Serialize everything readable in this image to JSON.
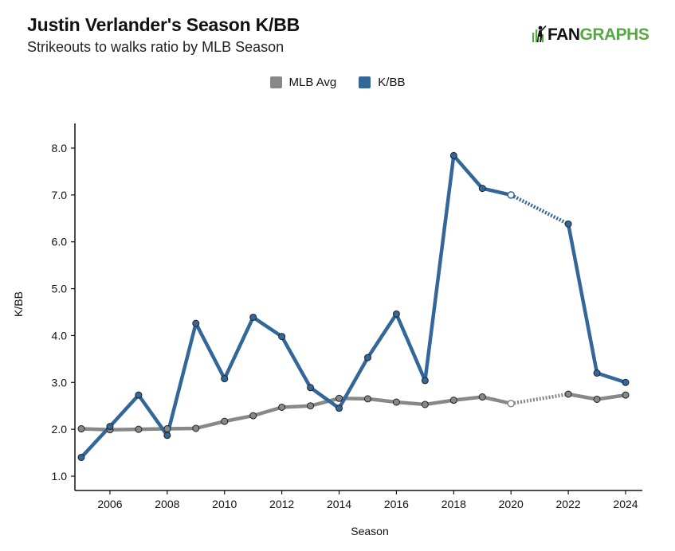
{
  "header": {
    "title": "Justin Verlander's Season K/BB",
    "subtitle": "Strikeouts to walks ratio by MLB Season"
  },
  "logo": {
    "text_fan": "FAN",
    "text_graphs": "GRAPHS",
    "icon": "fangraphs-batter-logo-icon",
    "colors": {
      "dark": "#111111",
      "green": "#56a842"
    }
  },
  "legend": [
    {
      "name": "MLB Avg",
      "color": "#888888"
    },
    {
      "name": "K/BB",
      "color": "#33679a"
    }
  ],
  "chart_data": {
    "type": "line",
    "xlabel": "Season",
    "ylabel": "K/BB",
    "xlim": [
      2005,
      2024
    ],
    "ylim": [
      1.0,
      8.0
    ],
    "x_ticks": [
      2006,
      2008,
      2010,
      2012,
      2014,
      2016,
      2018,
      2020,
      2022,
      2024
    ],
    "y_ticks": [
      1.0,
      2.0,
      3.0,
      4.0,
      5.0,
      6.0,
      7.0,
      8.0
    ],
    "grid": false,
    "legend_position": "top-center",
    "series": [
      {
        "name": "MLB Avg",
        "color": "#888888",
        "points": [
          {
            "x": 2005,
            "y": 2.01
          },
          {
            "x": 2006,
            "y": 1.99
          },
          {
            "x": 2007,
            "y": 2.0
          },
          {
            "x": 2008,
            "y": 2.01
          },
          {
            "x": 2009,
            "y": 2.02
          },
          {
            "x": 2010,
            "y": 2.17
          },
          {
            "x": 2011,
            "y": 2.29
          },
          {
            "x": 2012,
            "y": 2.47
          },
          {
            "x": 2013,
            "y": 2.5
          },
          {
            "x": 2014,
            "y": 2.66
          },
          {
            "x": 2015,
            "y": 2.65
          },
          {
            "x": 2016,
            "y": 2.58
          },
          {
            "x": 2017,
            "y": 2.53
          },
          {
            "x": 2018,
            "y": 2.62
          },
          {
            "x": 2019,
            "y": 2.69
          },
          {
            "x": 2020,
            "y": 2.55
          },
          {
            "x": 2022,
            "y": 2.75
          },
          {
            "x": 2023,
            "y": 2.64
          },
          {
            "x": 2024,
            "y": 2.73
          }
        ]
      },
      {
        "name": "K/BB",
        "color": "#33679a",
        "points": [
          {
            "x": 2005,
            "y": 1.4
          },
          {
            "x": 2006,
            "y": 2.06
          },
          {
            "x": 2007,
            "y": 2.73
          },
          {
            "x": 2008,
            "y": 1.87
          },
          {
            "x": 2009,
            "y": 4.26
          },
          {
            "x": 2010,
            "y": 3.08
          },
          {
            "x": 2011,
            "y": 4.39
          },
          {
            "x": 2012,
            "y": 3.98
          },
          {
            "x": 2013,
            "y": 2.89
          },
          {
            "x": 2014,
            "y": 2.45
          },
          {
            "x": 2015,
            "y": 3.53
          },
          {
            "x": 2016,
            "y": 4.46
          },
          {
            "x": 2017,
            "y": 3.04
          },
          {
            "x": 2018,
            "y": 7.84
          },
          {
            "x": 2019,
            "y": 7.14
          },
          {
            "x": 2020,
            "y": 7.0
          },
          {
            "x": 2022,
            "y": 6.38
          },
          {
            "x": 2023,
            "y": 3.2
          },
          {
            "x": 2024,
            "y": 3.0
          }
        ]
      }
    ],
    "gap_after_x": 2020,
    "hollow_marker_x": [
      2020
    ]
  }
}
